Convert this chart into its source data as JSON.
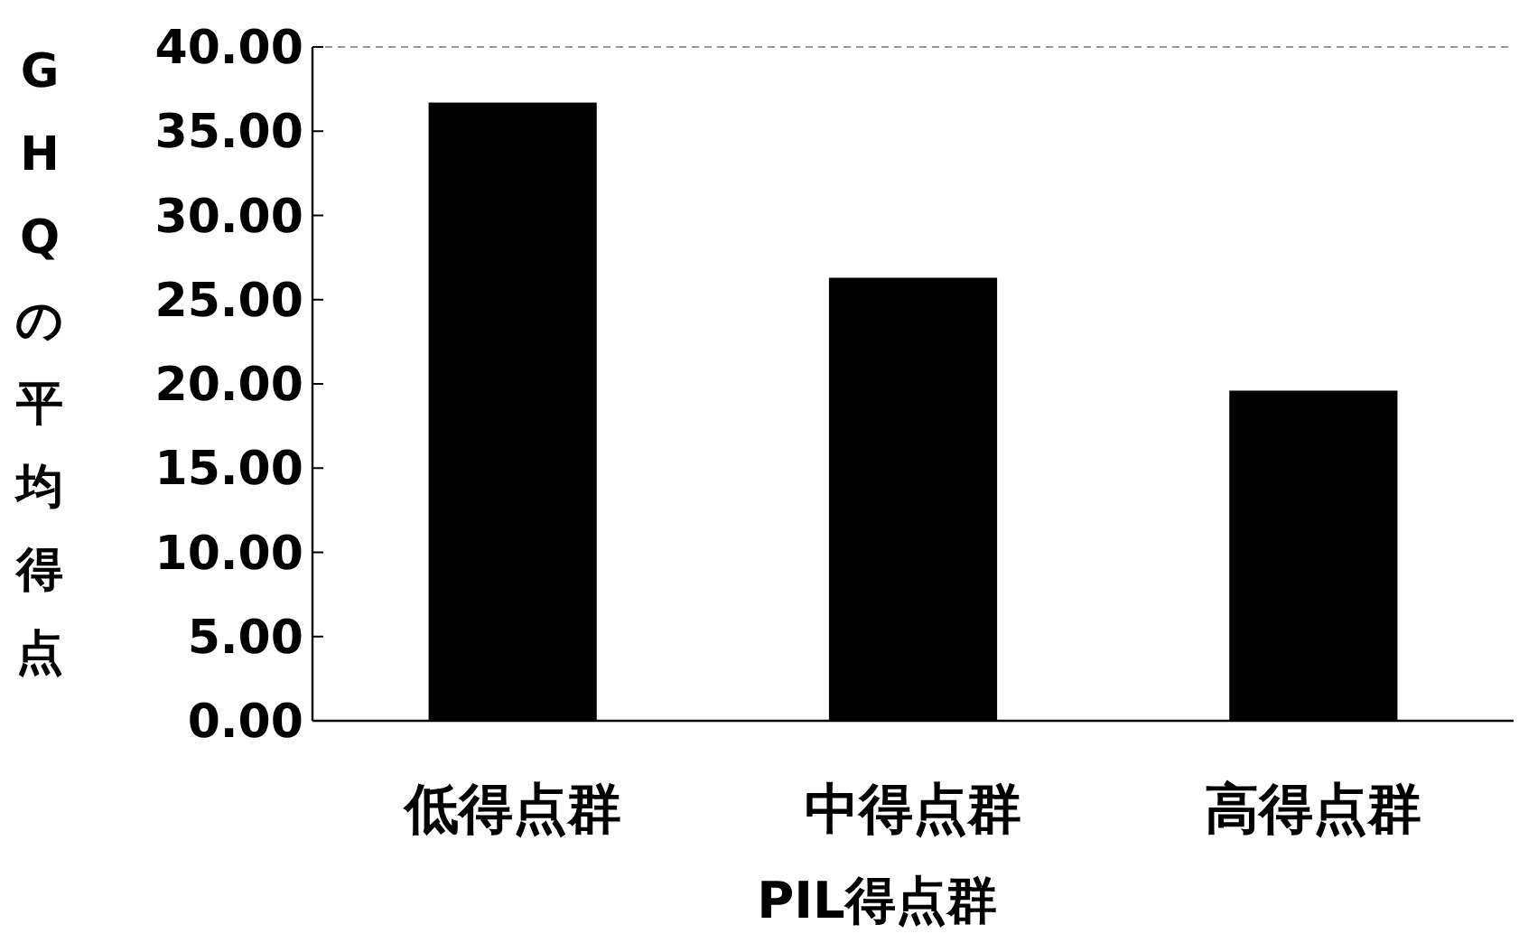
{
  "chart_data": {
    "type": "bar",
    "xlabel": "PIL得点群",
    "ylabel": "GHQの平均得点",
    "categories": [
      "低得点群",
      "中得点群",
      "高得点群"
    ],
    "values": [
      36.7,
      26.3,
      19.6
    ],
    "color": "#000000",
    "ylim": [
      0,
      40
    ],
    "yticks": [
      {
        "value": 0,
        "label": "0.00"
      },
      {
        "value": 5,
        "label": "5.00"
      },
      {
        "value": 10,
        "label": "10.00"
      },
      {
        "value": 15,
        "label": "15.00"
      },
      {
        "value": 20,
        "label": "20.00"
      },
      {
        "value": 25,
        "label": "25.00"
      },
      {
        "value": 30,
        "label": "30.00"
      },
      {
        "value": 35,
        "label": "35.00"
      },
      {
        "value": 40,
        "label": "40.00"
      }
    ],
    "grid": false
  }
}
